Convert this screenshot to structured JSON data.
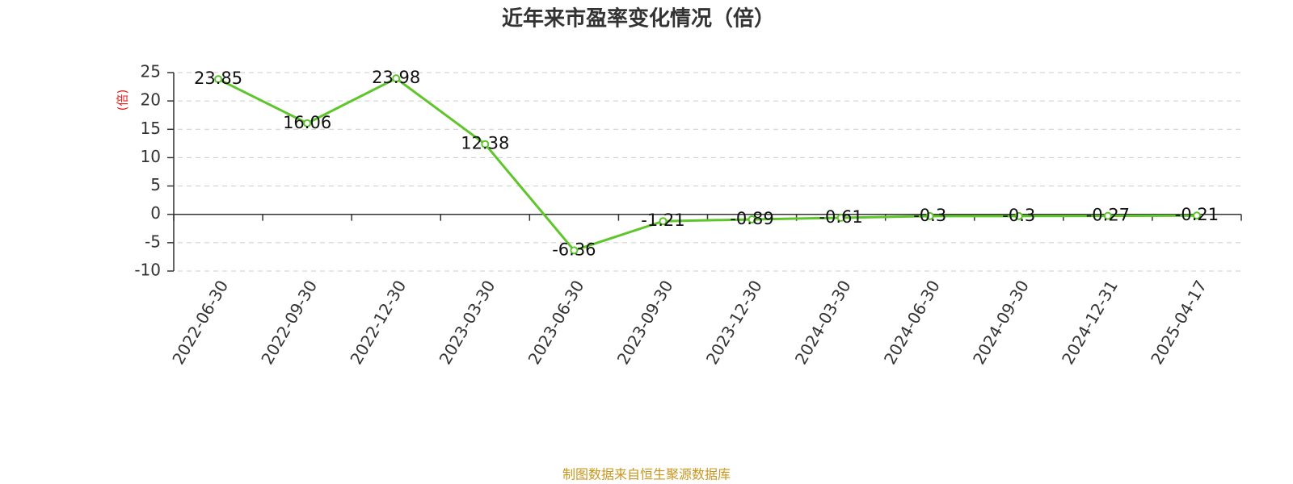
{
  "chart_data": {
    "type": "line",
    "title": "近年来市盈率变化情况（倍）",
    "y_label": "(倍)",
    "categories": [
      "2022-06-30",
      "2022-09-30",
      "2022-12-30",
      "2023-03-30",
      "2023-06-30",
      "2023-09-30",
      "2023-12-30",
      "2024-03-30",
      "2024-06-30",
      "2024-09-30",
      "2024-12-31",
      "2025-04-17"
    ],
    "series": [
      {
        "name": "市盈率",
        "color": "#5ec52a",
        "values": [
          23.85,
          16.06,
          23.98,
          12.38,
          -6.36,
          -1.21,
          -0.89,
          -0.61,
          -0.3,
          -0.3,
          -0.27,
          -0.21
        ]
      }
    ],
    "ylim": [
      -10,
      25
    ],
    "yticks": [
      -10,
      -5,
      0,
      5,
      10,
      15,
      20,
      25
    ],
    "grid": true,
    "footer": "制图数据来自恒生聚源数据库"
  }
}
